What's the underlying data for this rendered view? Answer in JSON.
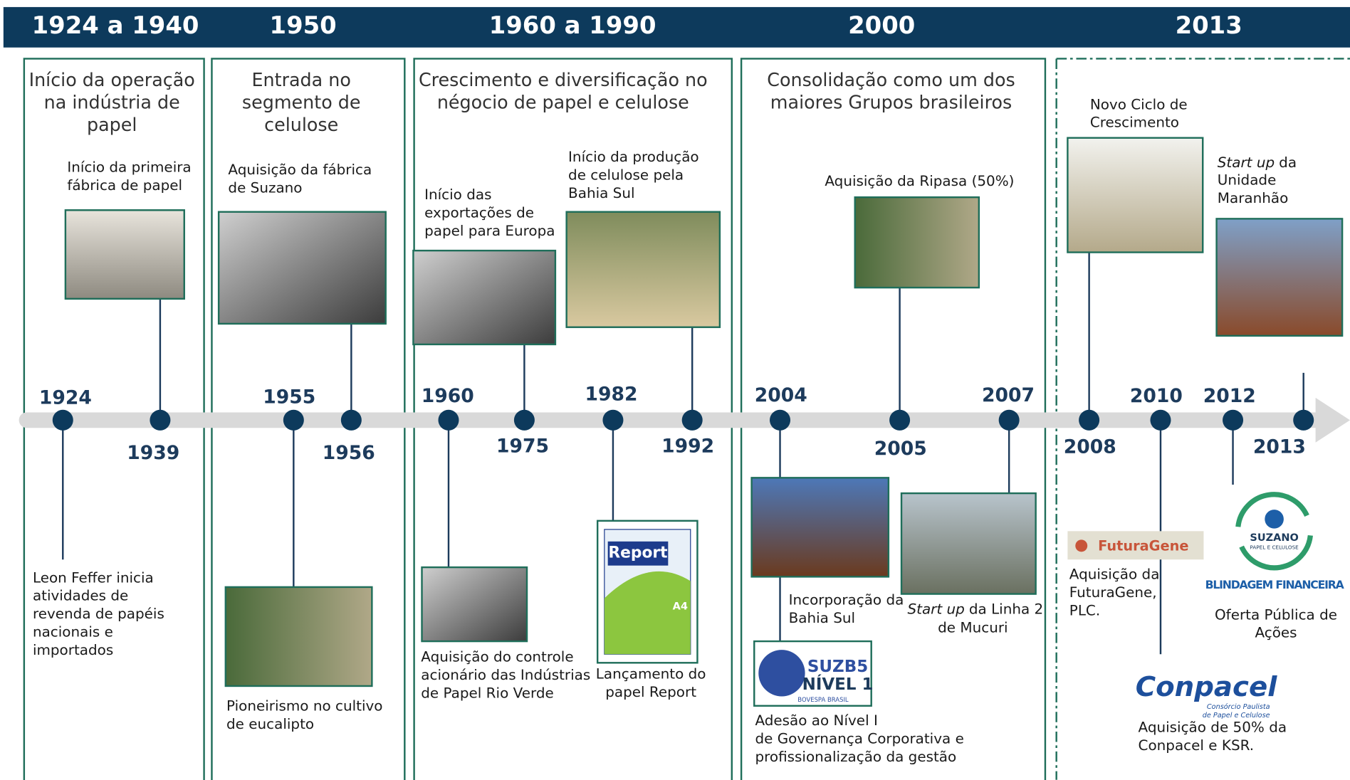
{
  "header": {
    "periods": [
      "1924 a 1940",
      "1950",
      "1960 a 1990",
      "2000",
      "2013"
    ]
  },
  "panels": [
    {
      "title": [
        "Início da operação",
        "na indústria de",
        "papel"
      ]
    },
    {
      "title": [
        "Entrada no",
        "segmento de",
        "celulose"
      ]
    },
    {
      "title": [
        "Crescimento e diversificação no",
        "négocio de papel e celulose"
      ]
    },
    {
      "title": [
        "Consolidação como um dos",
        "maiores Grupos brasileiros"
      ]
    },
    {
      "title": []
    }
  ],
  "events": [
    {
      "year": "1924",
      "lines": [
        "Leon Feffer inicia",
        "atividades de",
        "revenda de papéis",
        "nacionais e",
        "importados"
      ]
    },
    {
      "year": "1939",
      "lines": [
        "Início da primeira",
        "fábrica de papel"
      ]
    },
    {
      "year": "1955",
      "lines": [
        "Pioneirismo no cultivo",
        "de eucalipto"
      ]
    },
    {
      "year": "1956",
      "lines": [
        "Aquisição da fábrica",
        "de Suzano"
      ]
    },
    {
      "year": "1960",
      "lines": [
        "Aquisição do controle",
        "acionário das Indústrias",
        "de Papel Rio Verde"
      ]
    },
    {
      "year": "1975",
      "lines": [
        "Início das",
        "exportações de",
        "papel para Europa"
      ]
    },
    {
      "year": "1982",
      "lines": [
        "Lançamento do",
        "papel Report"
      ]
    },
    {
      "year": "1992",
      "lines": [
        "Início da produção",
        "de celulose pela",
        "Bahia Sul"
      ]
    },
    {
      "year": "2004",
      "lines": [
        "Incorporação da",
        "Bahia Sul"
      ],
      "extra_lines": [
        "Adesão ao Nível I",
        "de Governança Corporativa e",
        "profissionalização da gestão"
      ]
    },
    {
      "year": "2005",
      "lines": [
        "Aquisição da Ripasa (50%)"
      ]
    },
    {
      "year": "2007",
      "emphasis": "Start up",
      "lines": [
        "da Linha 2",
        "de Mucuri"
      ]
    },
    {
      "year": "2008",
      "lines": [
        "Novo Ciclo de",
        "Crescimento"
      ]
    },
    {
      "year": "2010",
      "lines": [
        "Aquisição da",
        "FuturaGene,",
        "PLC."
      ],
      "extra_lines": [
        "Aquisição de 50% da",
        "Conpacel e KSR."
      ]
    },
    {
      "year": "2012",
      "lines": [
        "Oferta Pública de",
        "Ações"
      ]
    },
    {
      "year": "2013",
      "emphasis": "Start up",
      "lines": [
        "da",
        "Unidade",
        "Maranhão"
      ]
    }
  ],
  "logos": {
    "report": {
      "name": "Report",
      "size": "A4"
    },
    "suzb5": {
      "name": "SUZB5",
      "level": "NÍVEL 1",
      "exchange": "BOVESPA   BRASIL"
    },
    "futuragene": {
      "name": "FuturaGene"
    },
    "conpacel": {
      "name": "Conpacel",
      "tagline": [
        "Consórcio Paulista",
        "de Papel e Celulose"
      ]
    },
    "suzano": {
      "name": "SUZANO",
      "tagline": "PAPEL E CELULOSE",
      "caption": "BLINDAGEM FINANCEIRA"
    }
  }
}
